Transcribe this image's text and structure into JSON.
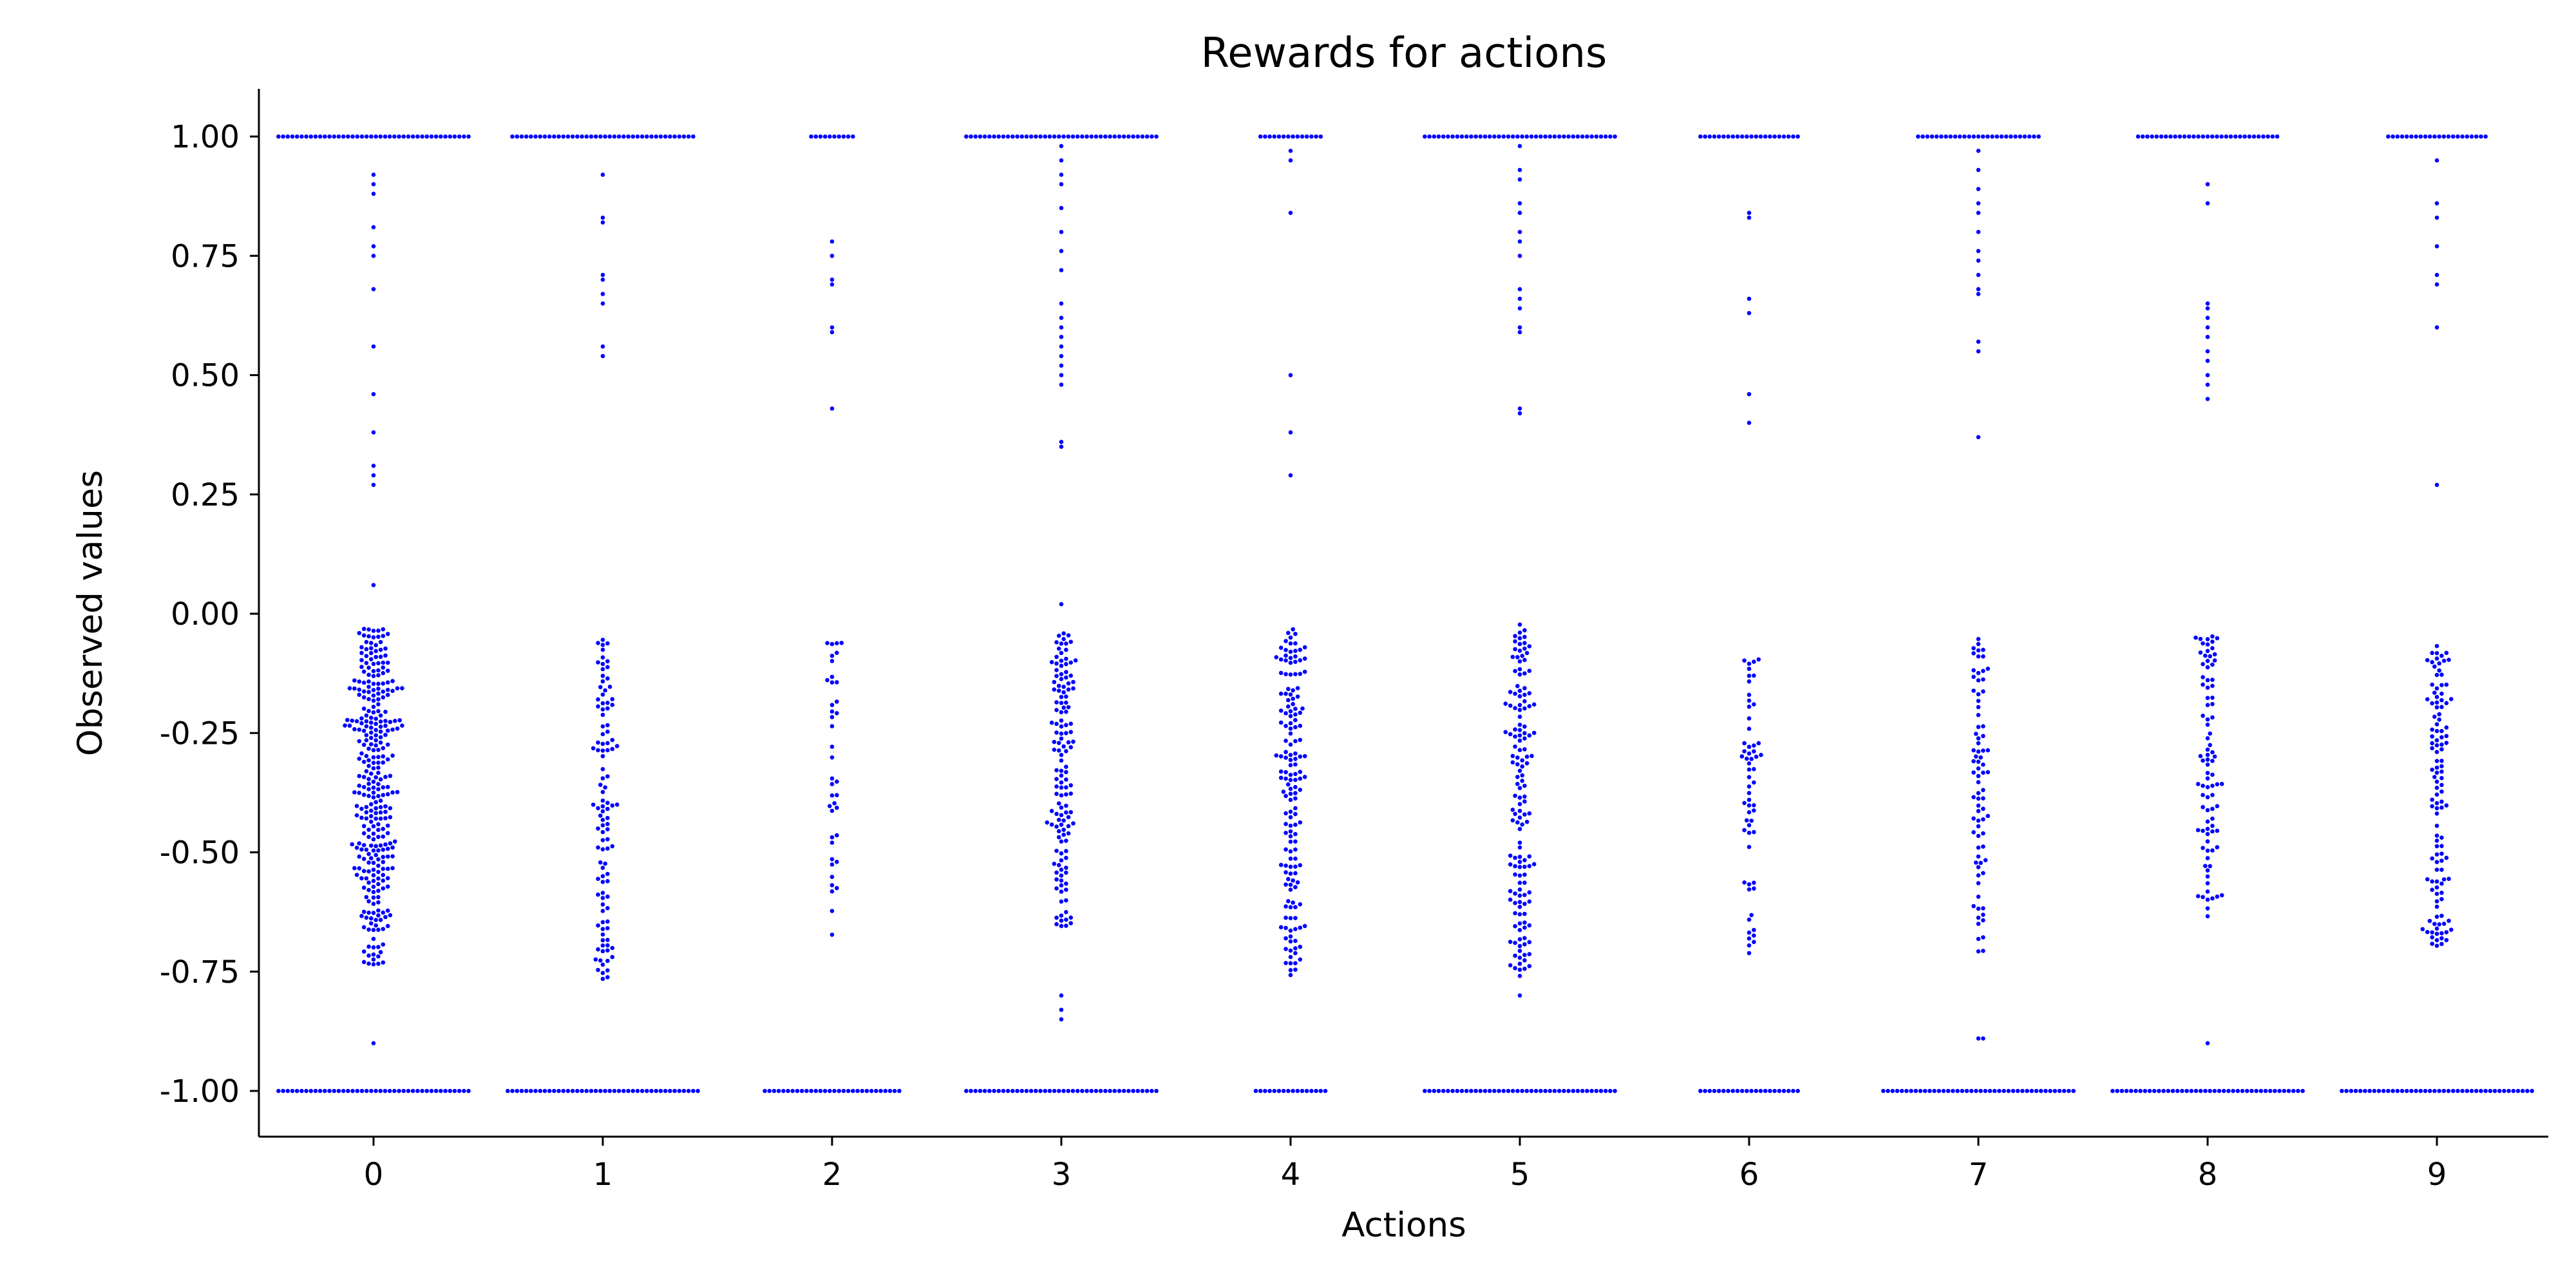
{
  "chart_data": {
    "type": "scatter",
    "subtype": "swarm",
    "title": "Rewards for actions",
    "xlabel": "Actions",
    "ylabel": "Observed values",
    "categories": [
      "0",
      "1",
      "2",
      "3",
      "4",
      "5",
      "6",
      "7",
      "8",
      "9"
    ],
    "yticks": [
      "-1.00",
      "-0.75",
      "-0.50",
      "-0.25",
      "0.00",
      "0.25",
      "0.50",
      "0.75",
      "1.00"
    ],
    "ylim": [
      -1.1,
      1.1
    ],
    "grid": false,
    "legend": "none",
    "marker_color": "#0000ff",
    "series": [
      {
        "category": "0",
        "n_plus1": 42,
        "n_minus1": 42,
        "mid": [
          0.92,
          0.9,
          0.88,
          0.81,
          0.77,
          0.75,
          0.68,
          0.56,
          0.46,
          0.38,
          0.31,
          0.29,
          0.27,
          0.06,
          -0.9
        ],
        "neg_min": -0.74,
        "neg_max": -0.03,
        "neg_count": 320
      },
      {
        "category": "1",
        "n_plus1": 40,
        "n_minus1": 42,
        "mid": [
          0.92,
          0.83,
          0.82,
          0.71,
          0.7,
          0.67,
          0.65,
          0.56,
          0.54
        ],
        "neg_min": -0.78,
        "neg_max": -0.05,
        "neg_count": 110
      },
      {
        "category": "2",
        "n_plus1": 10,
        "n_minus1": 30,
        "mid": [
          0.78,
          0.75,
          0.7,
          0.69,
          0.6,
          0.59,
          0.43
        ],
        "neg_min": -0.68,
        "neg_max": -0.04,
        "neg_count": 40
      },
      {
        "category": "3",
        "n_plus1": 42,
        "n_minus1": 42,
        "mid": [
          0.98,
          0.95,
          0.92,
          0.9,
          0.85,
          0.8,
          0.76,
          0.72,
          0.65,
          0.62,
          0.6,
          0.58,
          0.56,
          0.54,
          0.52,
          0.5,
          0.48,
          0.36,
          0.35,
          0.02,
          -0.8,
          -0.83,
          -0.85
        ],
        "neg_min": -0.66,
        "neg_max": -0.04,
        "neg_count": 140
      },
      {
        "category": "4",
        "n_plus1": 14,
        "n_minus1": 16,
        "mid": [
          0.97,
          0.95,
          0.84,
          0.5,
          0.38,
          0.29
        ],
        "neg_min": -0.76,
        "neg_max": -0.02,
        "neg_count": 160
      },
      {
        "category": "5",
        "n_plus1": 42,
        "n_minus1": 42,
        "mid": [
          0.98,
          0.93,
          0.91,
          0.86,
          0.84,
          0.8,
          0.78,
          0.75,
          0.68,
          0.66,
          0.64,
          0.6,
          0.59,
          0.43,
          0.42,
          -0.8
        ],
        "neg_min": -0.76,
        "neg_max": -0.02,
        "neg_count": 150
      },
      {
        "category": "6",
        "n_plus1": 22,
        "n_minus1": 22,
        "mid": [
          0.84,
          0.83,
          0.66,
          0.63,
          0.46,
          0.4
        ],
        "neg_min": -0.72,
        "neg_max": -0.08,
        "neg_count": 60
      },
      {
        "category": "7",
        "n_plus1": 27,
        "n_minus1": 42,
        "mid": [
          0.97,
          0.93,
          0.89,
          0.86,
          0.84,
          0.8,
          0.76,
          0.74,
          0.71,
          0.68,
          0.67,
          0.57,
          0.55,
          0.37,
          -0.89,
          -0.89
        ],
        "neg_min": -0.71,
        "neg_max": -0.03,
        "neg_count": 80
      },
      {
        "category": "8",
        "n_plus1": 31,
        "n_minus1": 42,
        "mid": [
          0.9,
          0.86,
          0.65,
          0.64,
          0.62,
          0.6,
          0.58,
          0.55,
          0.53,
          0.5,
          0.48,
          0.45,
          -0.9
        ],
        "neg_min": -0.66,
        "neg_max": -0.03,
        "neg_count": 90
      },
      {
        "category": "9",
        "n_plus1": 22,
        "n_minus1": 42,
        "mid": [
          0.95,
          0.86,
          0.83,
          0.77,
          0.71,
          0.69,
          0.6,
          0.27
        ],
        "neg_min": -0.7,
        "neg_max": -0.05,
        "neg_count": 120
      }
    ]
  }
}
